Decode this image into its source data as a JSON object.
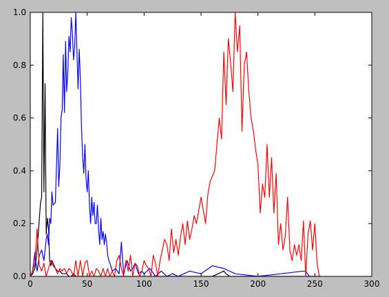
{
  "chart_data": {
    "type": "line",
    "title": "",
    "xlabel": "",
    "ylabel": "",
    "xlim": [
      0,
      300
    ],
    "ylim": [
      0.0,
      1.0
    ],
    "x_ticks": [
      0,
      50,
      100,
      150,
      200,
      250,
      300
    ],
    "x_tick_labels": [
      "0",
      "50",
      "100",
      "150",
      "200",
      "250",
      "300"
    ],
    "y_ticks": [
      0.0,
      0.2,
      0.4,
      0.6,
      0.8,
      1.0
    ],
    "y_tick_labels": [
      "0.0",
      "0.2",
      "0.4",
      "0.6",
      "0.8",
      "1.0"
    ],
    "grid": false,
    "legend": "none",
    "series": [
      {
        "color": "#000000",
        "x": [
          0,
          2,
          4,
          5,
          6,
          7,
          8,
          9,
          10,
          11,
          12,
          13,
          14,
          15,
          16,
          17,
          18,
          19,
          20,
          22,
          24,
          26,
          28,
          30,
          32,
          34,
          36,
          38,
          40,
          45,
          50,
          55,
          60,
          70,
          80,
          90,
          100,
          110,
          120,
          130,
          140,
          150,
          160,
          165,
          170,
          172,
          175,
          180,
          190,
          200,
          255
        ],
        "y": [
          0.0,
          0.01,
          0.03,
          0.06,
          0.1,
          0.16,
          0.22,
          0.28,
          0.3,
          1.0,
          0.32,
          0.73,
          0.16,
          0.22,
          0.18,
          0.06,
          0.04,
          0.06,
          0.05,
          0.03,
          0.02,
          0.02,
          0.01,
          0.01,
          0.01,
          0.0,
          0.0,
          0.01,
          0.0,
          0.0,
          0.0,
          0.0,
          0.0,
          0.0,
          0.0,
          0.0,
          0.0,
          0.0,
          0.0,
          0.0,
          0.0,
          0.0,
          0.0,
          0.01,
          0.02,
          0.01,
          0.0,
          0.0,
          0.0,
          0.0,
          0.0
        ]
      },
      {
        "color": "#0000ff",
        "x": [
          0,
          2,
          4,
          5,
          6,
          8,
          10,
          12,
          14,
          15,
          16,
          17,
          18,
          19,
          20,
          22,
          24,
          25,
          26,
          27,
          28,
          29,
          30,
          31,
          32,
          33,
          34,
          35,
          36,
          37,
          38,
          39,
          40,
          41,
          42,
          43,
          44,
          45,
          46,
          47,
          48,
          49,
          50,
          51,
          52,
          53,
          54,
          55,
          56,
          57,
          58,
          59,
          60,
          61,
          62,
          63,
          64,
          65,
          66,
          67,
          68,
          69,
          70,
          72,
          75,
          78,
          80,
          82,
          85,
          88,
          90,
          92,
          95,
          98,
          100,
          105,
          110,
          115,
          120,
          125,
          130,
          140,
          150,
          160,
          170,
          180,
          200,
          220,
          240,
          242,
          245,
          255
        ],
        "y": [
          0.0,
          0.02,
          0.09,
          0.05,
          0.02,
          0.08,
          0.1,
          0.06,
          0.14,
          0.16,
          0.12,
          0.22,
          0.2,
          0.32,
          0.27,
          0.28,
          0.56,
          0.34,
          0.42,
          0.6,
          0.63,
          0.84,
          0.62,
          0.89,
          0.7,
          0.78,
          0.91,
          0.85,
          0.98,
          0.92,
          0.82,
          0.87,
          1.0,
          0.85,
          0.71,
          0.86,
          0.75,
          0.56,
          0.45,
          0.39,
          0.5,
          0.37,
          0.32,
          0.4,
          0.27,
          0.2,
          0.3,
          0.23,
          0.28,
          0.2,
          0.2,
          0.27,
          0.18,
          0.12,
          0.22,
          0.14,
          0.17,
          0.12,
          0.16,
          0.13,
          0.08,
          0.06,
          0.05,
          0.02,
          0.03,
          0.01,
          0.13,
          0.01,
          0.06,
          0.02,
          0.03,
          0.05,
          0.01,
          0.02,
          0.01,
          0.03,
          0.0,
          0.02,
          0.0,
          0.01,
          0.0,
          0.02,
          0.01,
          0.04,
          0.03,
          0.01,
          0.0,
          0.01,
          0.02,
          0.02,
          0.0,
          0.0
        ]
      },
      {
        "color": "#ff0000",
        "x": [
          0,
          2,
          4,
          5,
          6,
          7,
          8,
          10,
          12,
          14,
          16,
          18,
          20,
          22,
          24,
          26,
          28,
          30,
          32,
          34,
          36,
          38,
          40,
          42,
          44,
          46,
          48,
          50,
          52,
          54,
          56,
          58,
          60,
          62,
          64,
          66,
          68,
          70,
          72,
          74,
          76,
          78,
          80,
          82,
          84,
          86,
          88,
          90,
          92,
          94,
          96,
          98,
          100,
          102,
          104,
          106,
          108,
          110,
          112,
          114,
          116,
          118,
          120,
          122,
          124,
          126,
          128,
          130,
          132,
          134,
          136,
          138,
          140,
          142,
          144,
          146,
          148,
          150,
          152,
          154,
          156,
          158,
          160,
          162,
          164,
          166,
          168,
          170,
          172,
          174,
          176,
          178,
          180,
          182,
          184,
          186,
          188,
          190,
          192,
          194,
          196,
          198,
          200,
          202,
          204,
          206,
          208,
          210,
          212,
          214,
          216,
          218,
          220,
          222,
          224,
          226,
          228,
          230,
          232,
          234,
          236,
          238,
          240,
          242,
          244,
          246,
          248,
          250,
          252,
          254,
          255
        ],
        "y": [
          0.0,
          0.02,
          0.05,
          0.12,
          0.18,
          0.1,
          0.04,
          0.02,
          0.05,
          0.0,
          0.03,
          0.06,
          0.04,
          0.03,
          0.01,
          0.03,
          0.02,
          0.03,
          0.01,
          0.03,
          0.02,
          0.0,
          0.06,
          0.0,
          0.06,
          0.0,
          0.05,
          0.06,
          0.0,
          0.02,
          0.0,
          0.03,
          0.02,
          0.0,
          0.03,
          0.0,
          0.03,
          0.0,
          0.02,
          0.0,
          0.06,
          0.08,
          0.03,
          0.0,
          0.06,
          0.02,
          0.08,
          0.0,
          0.05,
          0.04,
          0.0,
          0.02,
          0.06,
          0.04,
          0.03,
          0.0,
          0.08,
          0.05,
          0.0,
          0.06,
          0.1,
          0.14,
          0.12,
          0.06,
          0.18,
          0.09,
          0.14,
          0.08,
          0.15,
          0.2,
          0.12,
          0.21,
          0.14,
          0.18,
          0.23,
          0.2,
          0.25,
          0.3,
          0.25,
          0.2,
          0.31,
          0.36,
          0.38,
          0.4,
          0.5,
          0.6,
          0.52,
          0.85,
          0.65,
          0.9,
          0.81,
          0.7,
          1.0,
          0.85,
          0.95,
          0.55,
          0.8,
          0.85,
          0.7,
          0.6,
          0.55,
          0.48,
          0.42,
          0.24,
          0.35,
          0.3,
          0.5,
          0.3,
          0.45,
          0.24,
          0.39,
          0.12,
          0.2,
          0.1,
          0.15,
          0.3,
          0.1,
          0.06,
          0.12,
          0.08,
          0.12,
          0.06,
          0.21,
          0.0,
          0.16,
          0.21,
          0.1,
          0.2,
          0.05,
          0.0,
          0.0
        ]
      }
    ]
  }
}
